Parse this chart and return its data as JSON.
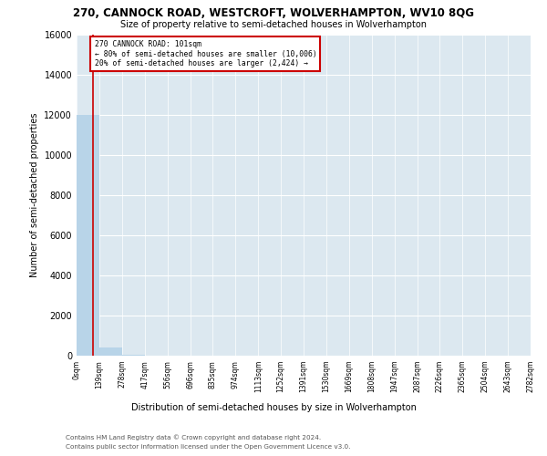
{
  "title": "270, CANNOCK ROAD, WESTCROFT, WOLVERHAMPTON, WV10 8QG",
  "subtitle": "Size of property relative to semi-detached houses in Wolverhampton",
  "xlabel_bottom": "Distribution of semi-detached houses by size in Wolverhampton",
  "ylabel": "Number of semi-detached properties",
  "property_size": 101,
  "annotation_line1": "270 CANNOCK ROAD: 101sqm",
  "annotation_line2": "← 80% of semi-detached houses are smaller (10,006)",
  "annotation_line3": "20% of semi-detached houses are larger (2,424) →",
  "footer_line1": "Contains HM Land Registry data © Crown copyright and database right 2024.",
  "footer_line2": "Contains public sector information licensed under the Open Government Licence v3.0.",
  "bar_color": "#b8d4e8",
  "vline_color": "#cc0000",
  "bg_color": "#dce8f0",
  "grid_color": "#ffffff",
  "ylim": [
    0,
    16000
  ],
  "yticks": [
    0,
    2000,
    4000,
    6000,
    8000,
    10000,
    12000,
    14000,
    16000
  ],
  "bin_edges": [
    0,
    139,
    278,
    417,
    556,
    696,
    835,
    974,
    1113,
    1252,
    1391,
    1530,
    1669,
    1808,
    1947,
    2087,
    2226,
    2365,
    2504,
    2643,
    2782
  ],
  "bin_labels": [
    "0sqm",
    "139sqm",
    "278sqm",
    "417sqm",
    "556sqm",
    "696sqm",
    "835sqm",
    "974sqm",
    "1113sqm",
    "1252sqm",
    "1391sqm",
    "1530sqm",
    "1669sqm",
    "1808sqm",
    "1947sqm",
    "2087sqm",
    "2226sqm",
    "2365sqm",
    "2504sqm",
    "2643sqm",
    "2782sqm"
  ],
  "bar_heights": [
    12000,
    430,
    30,
    10,
    5,
    3,
    2,
    2,
    1,
    1,
    1,
    1,
    0,
    0,
    0,
    0,
    0,
    0,
    0,
    0
  ]
}
